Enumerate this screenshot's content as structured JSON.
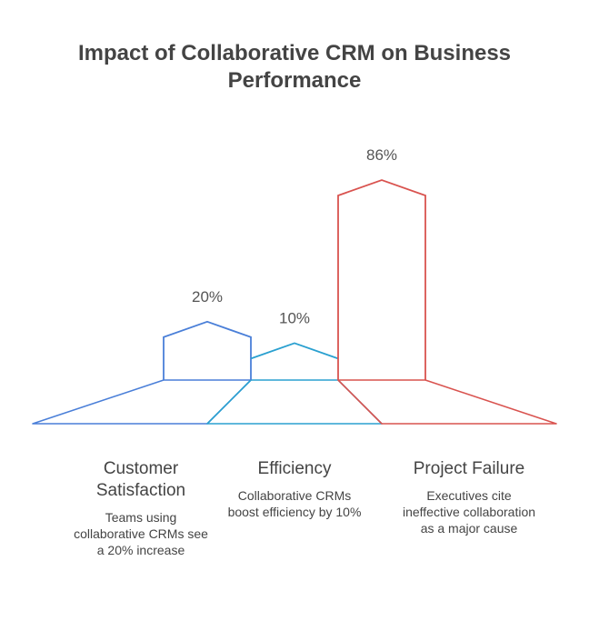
{
  "chart_data": {
    "type": "bar",
    "title": "Impact of Collaborative CRM on Business Performance",
    "title_lines": [
      "Impact of Collaborative CRM on Business",
      "Performance"
    ],
    "categories": [
      "Customer Satisfaction",
      "Efficiency",
      "Project Failure"
    ],
    "values": [
      20,
      10,
      86
    ],
    "value_labels": [
      "20%",
      "10%",
      "86%"
    ],
    "unit": "%",
    "colors": [
      "#4a7fd8",
      "#2aa0d0",
      "#d9534f"
    ],
    "items": [
      {
        "label_lines": [
          "Customer",
          "Satisfaction"
        ],
        "description_lines": [
          "Teams using",
          "collaborative CRMs see",
          "a 20% increase"
        ]
      },
      {
        "label_lines": [
          "Efficiency"
        ],
        "description_lines": [
          "Collaborative CRMs",
          "boost efficiency by 10%"
        ]
      },
      {
        "label_lines": [
          "Project Failure"
        ],
        "description_lines": [
          "Executives cite",
          "ineffective collaboration",
          "as a major cause"
        ]
      }
    ]
  }
}
